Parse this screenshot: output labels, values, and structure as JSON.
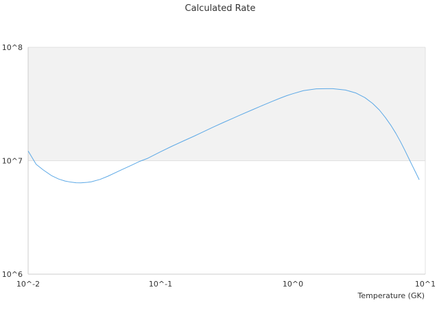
{
  "chart_data": {
    "type": "line",
    "title": "Calculated Rate",
    "xlabel": "Temperature (GK)",
    "ylabel": "",
    "x_scale": "log",
    "y_scale": "log",
    "xlim": [
      0.01,
      10
    ],
    "ylim": [
      1000000,
      100000000
    ],
    "x_tick_labels": [
      "10^-2",
      "10^-1",
      "10^0",
      "10^1"
    ],
    "y_tick_labels": [
      "10^6",
      "10^7",
      "10^8"
    ],
    "grid": true,
    "legend": "none",
    "colors": {
      "line": "#5ba8e6",
      "band": "#f2f2f2",
      "grid": "#e0e0e0",
      "axis": "#cccccc"
    },
    "series": [
      {
        "x": [
          0.01,
          0.0115,
          0.013,
          0.015,
          0.017,
          0.019,
          0.021,
          0.023,
          0.025,
          0.028,
          0.03,
          0.035,
          0.04,
          0.05,
          0.06,
          0.07,
          0.08,
          0.1,
          0.12,
          0.15,
          0.18,
          0.2,
          0.25,
          0.3,
          0.35,
          0.4,
          0.5,
          0.6,
          0.7,
          0.8,
          0.9,
          1.0,
          1.2,
          1.5,
          1.8,
          2.0,
          2.5,
          3.0,
          3.5,
          4.0,
          4.5,
          5.0,
          5.5,
          6.0,
          6.5,
          7.0,
          7.5,
          8.0,
          8.5,
          9.0
        ],
        "y": [
          12200000,
          9300000,
          8300000,
          7400000,
          6900000,
          6620000,
          6480000,
          6400000,
          6380000,
          6450000,
          6520000,
          6850000,
          7300000,
          8250000,
          9100000,
          9900000,
          10500000,
          12000000,
          13300000,
          15000000,
          16500000,
          17500000,
          19800000,
          21800000,
          23600000,
          25300000,
          28300000,
          31000000,
          33400000,
          35600000,
          37500000,
          39000000,
          41500000,
          43000000,
          43200000,
          43200000,
          42000000,
          39500000,
          36000000,
          32000000,
          28000000,
          24000000,
          20500000,
          17400000,
          14700000,
          12400000,
          10500000,
          9000000,
          7800000,
          6800000
        ]
      }
    ]
  }
}
